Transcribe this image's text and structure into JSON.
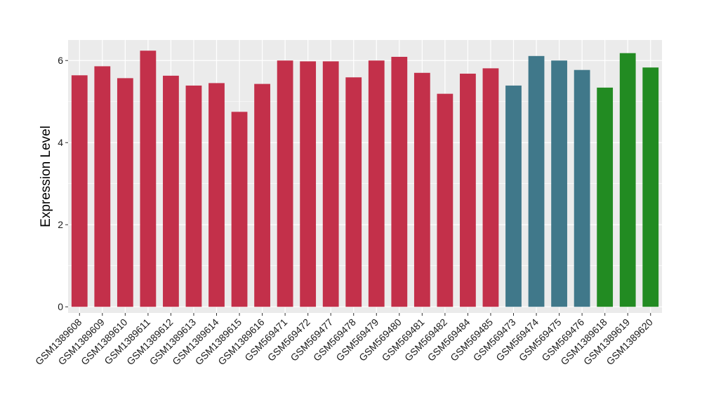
{
  "chart_data": {
    "type": "bar",
    "title": "",
    "xlabel": "",
    "ylabel": "Expression Level",
    "ylim": [
      -0.15,
      6.5
    ],
    "yticks": [
      0,
      2,
      4,
      6
    ],
    "grid": true,
    "legend": "none",
    "panel_background": "#EBEBEB",
    "grid_color": "#FFFFFF",
    "categories": [
      "GSM1389608",
      "GSM1389609",
      "GSM1389610",
      "GSM1389611",
      "GSM1389612",
      "GSM1389613",
      "GSM1389614",
      "GSM1389615",
      "GSM1389616",
      "GSM569471",
      "GSM569472",
      "GSM569477",
      "GSM569478",
      "GSM569479",
      "GSM569480",
      "GSM569481",
      "GSM569482",
      "GSM569484",
      "GSM569485",
      "GSM569473",
      "GSM569474",
      "GSM569475",
      "GSM569476",
      "GSM1389618",
      "GSM1389619",
      "GSM1389620"
    ],
    "values": [
      5.64,
      5.86,
      5.57,
      6.24,
      5.63,
      5.39,
      5.45,
      4.75,
      5.43,
      6.0,
      5.98,
      5.98,
      5.59,
      6.0,
      6.09,
      5.7,
      5.19,
      5.68,
      5.81,
      5.39,
      6.11,
      6.0,
      5.77,
      5.34,
      6.18,
      5.83
    ],
    "bar_colors": [
      "#C3304A",
      "#C3304A",
      "#C3304A",
      "#C3304A",
      "#C3304A",
      "#C3304A",
      "#C3304A",
      "#C3304A",
      "#C3304A",
      "#C3304A",
      "#C3304A",
      "#C3304A",
      "#C3304A",
      "#C3304A",
      "#C3304A",
      "#C3304A",
      "#C3304A",
      "#C3304A",
      "#C3304A",
      "#40788A",
      "#40788A",
      "#40788A",
      "#40788A",
      "#228B22",
      "#228B22",
      "#228B22"
    ]
  }
}
